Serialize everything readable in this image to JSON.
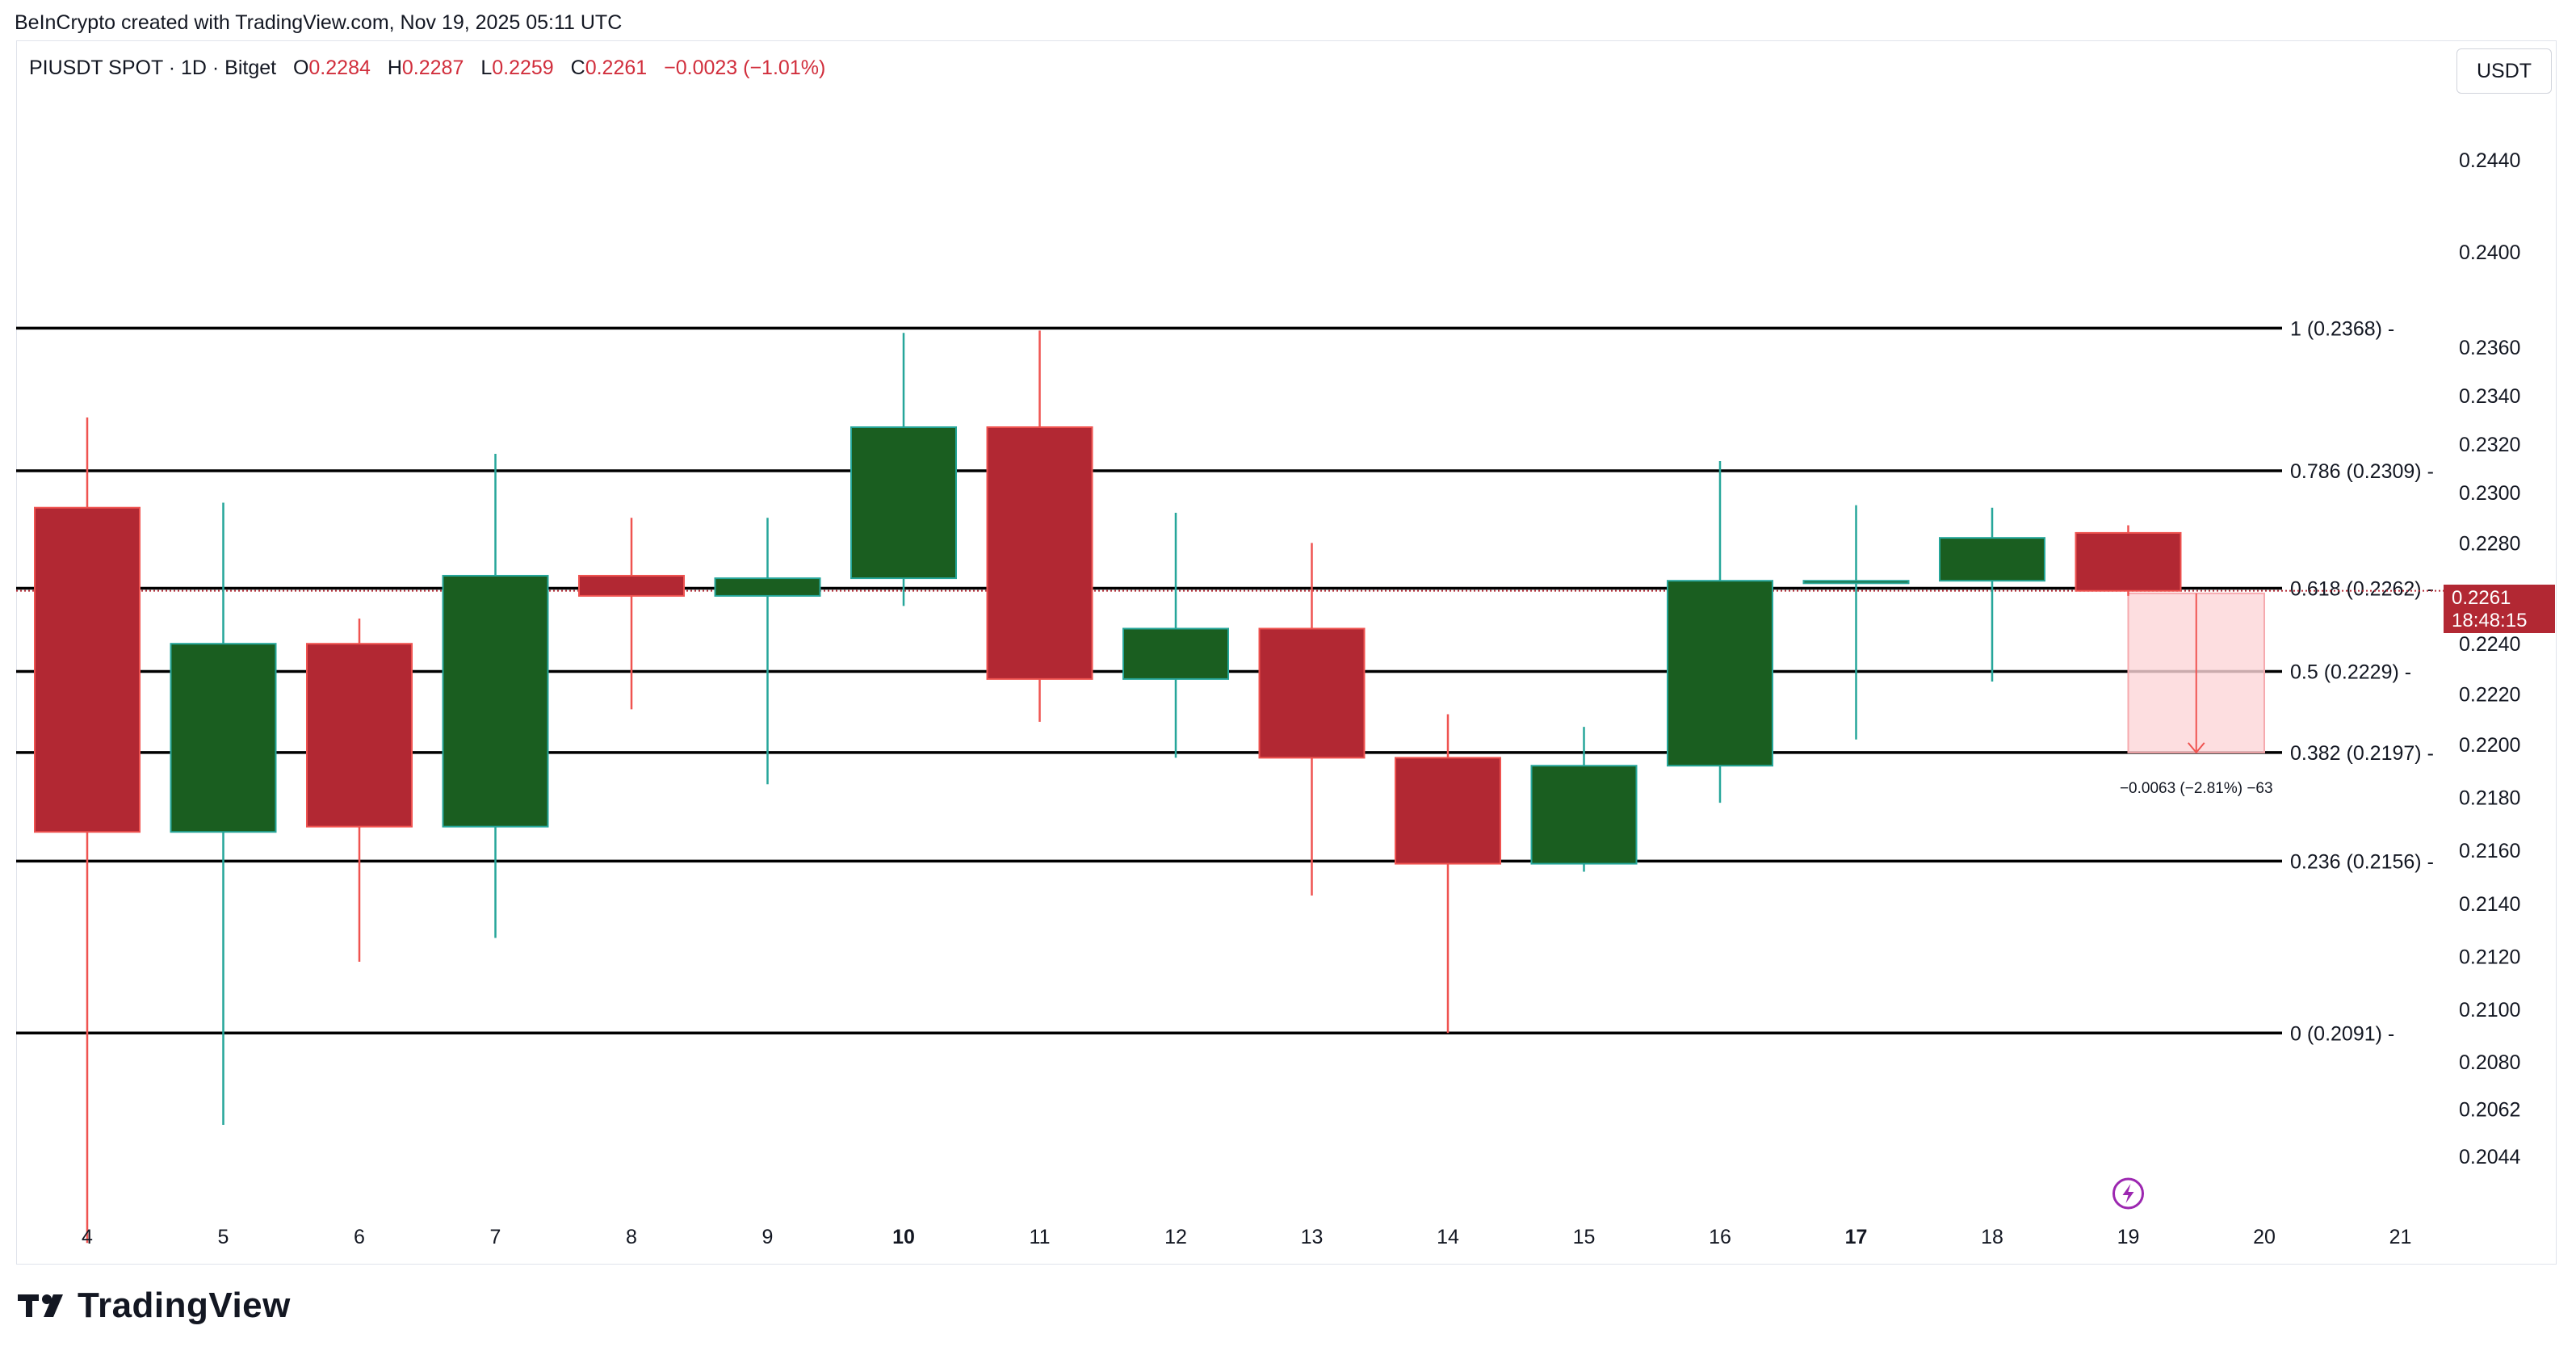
{
  "header": {
    "credit": "BeInCrypto created with TradingView.com, Nov 19, 2025 05:11 UTC"
  },
  "symbol": {
    "name": "PIUSDT SPOT · 1D · Bitget",
    "open_label": "O",
    "open": "0.2284",
    "high_label": "H",
    "high": "0.2287",
    "low_label": "L",
    "low": "0.2259",
    "close_label": "C",
    "close": "0.2261",
    "change": "−0.0023 (−1.01%)"
  },
  "currency": "USDT",
  "last_price": {
    "price": "0.2261",
    "countdown": "18:48:15"
  },
  "brand": {
    "name": "TradingView"
  },
  "colors": {
    "up": "#1a5e20",
    "down": "#b22833",
    "up_wick": "#26a69a",
    "down_wick": "#ef5350"
  },
  "chart_data": {
    "type": "candlestick",
    "x_tick_labels": [
      "4",
      "5",
      "6",
      "7",
      "8",
      "9",
      "10",
      "11",
      "12",
      "13",
      "14",
      "15",
      "16",
      "17",
      "18",
      "19",
      "20",
      "21"
    ],
    "bold_x_ticks": [
      "10",
      "17"
    ],
    "y_tick_labels": [
      "0.2440",
      "0.2400",
      "0.2360",
      "0.2340",
      "0.2320",
      "0.2300",
      "0.2280",
      "0.2240",
      "0.2220",
      "0.2200",
      "0.2180",
      "0.2160",
      "0.2140",
      "0.2120",
      "0.2100",
      "0.2080",
      "0.2062",
      "0.2044"
    ],
    "candles": [
      {
        "x": "4",
        "open": 0.2294,
        "high": 0.2331,
        "low": 0.2011,
        "close": 0.2167
      },
      {
        "x": "5",
        "open": 0.2167,
        "high": 0.2296,
        "low": 0.2056,
        "close": 0.224
      },
      {
        "x": "6",
        "open": 0.224,
        "high": 0.225,
        "low": 0.2118,
        "close": 0.2169
      },
      {
        "x": "7",
        "open": 0.2169,
        "high": 0.2316,
        "low": 0.2127,
        "close": 0.2267
      },
      {
        "x": "8",
        "open": 0.2267,
        "high": 0.229,
        "low": 0.2214,
        "close": 0.2259
      },
      {
        "x": "9",
        "open": 0.2259,
        "high": 0.229,
        "low": 0.2185,
        "close": 0.2266
      },
      {
        "x": "10",
        "open": 0.2266,
        "high": 0.2366,
        "low": 0.2255,
        "close": 0.2327
      },
      {
        "x": "11",
        "open": 0.2327,
        "high": 0.2367,
        "low": 0.2209,
        "close": 0.2226
      },
      {
        "x": "12",
        "open": 0.2226,
        "high": 0.2292,
        "low": 0.2195,
        "close": 0.2246
      },
      {
        "x": "13",
        "open": 0.2246,
        "high": 0.228,
        "low": 0.2143,
        "close": 0.2195
      },
      {
        "x": "14",
        "open": 0.2195,
        "high": 0.2212,
        "low": 0.2091,
        "close": 0.2155
      },
      {
        "x": "15",
        "open": 0.2155,
        "high": 0.2207,
        "low": 0.2152,
        "close": 0.2192
      },
      {
        "x": "16",
        "open": 0.2192,
        "high": 0.2313,
        "low": 0.2178,
        "close": 0.2265
      },
      {
        "x": "17",
        "open": 0.2264,
        "high": 0.2295,
        "low": 0.2202,
        "close": 0.2265
      },
      {
        "x": "18",
        "open": 0.2265,
        "high": 0.2294,
        "low": 0.2225,
        "close": 0.2282
      },
      {
        "x": "19",
        "open": 0.2284,
        "high": 0.2287,
        "low": 0.2259,
        "close": 0.2261
      }
    ],
    "fib_levels": [
      {
        "ratio": "1",
        "price": 0.2368,
        "label": "1 (0.2368)"
      },
      {
        "ratio": "0.786",
        "price": 0.2309,
        "label": "0.786 (0.2309)"
      },
      {
        "ratio": "0.618",
        "price": 0.2262,
        "label": "0.618 (0.2262)"
      },
      {
        "ratio": "0.5",
        "price": 0.2229,
        "label": "0.5 (0.2229)"
      },
      {
        "ratio": "0.382",
        "price": 0.2197,
        "label": "0.382 (0.2197)"
      },
      {
        "ratio": "0.236",
        "price": 0.2156,
        "label": "0.236 (0.2156)"
      },
      {
        "ratio": "0",
        "price": 0.2091,
        "label": "0 (0.2091)"
      }
    ],
    "measure": {
      "from_x": "19",
      "to_x": "20",
      "from": 0.226,
      "to": 0.2197,
      "label": "−0.0063 (−2.81%) −63"
    },
    "grid": false,
    "legend": "none"
  }
}
